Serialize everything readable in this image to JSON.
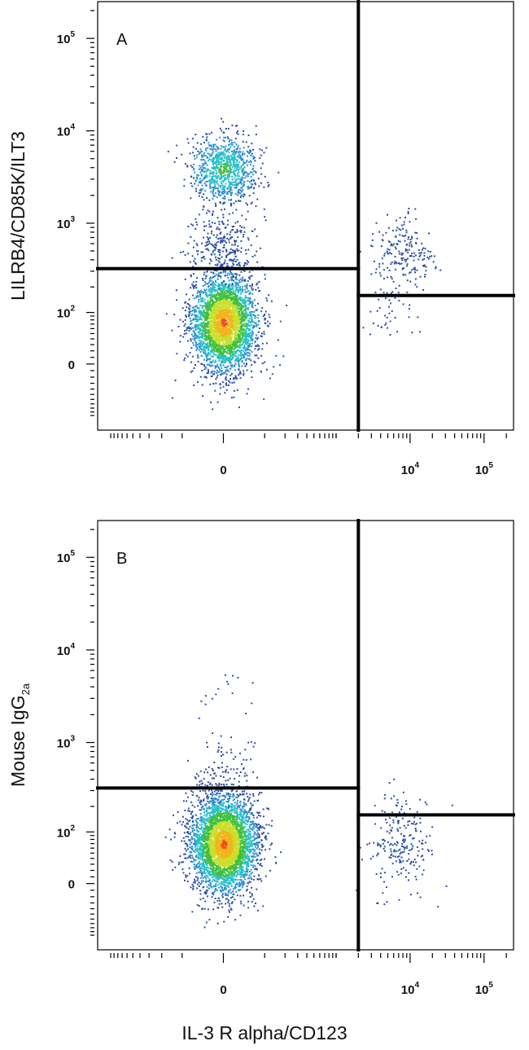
{
  "chart_data": [
    {
      "type": "scatter",
      "panel_label": "A",
      "ylabel": "LILRB4/CD85K/ILT3",
      "xlabel": "",
      "x_ticks": [
        {
          "base": "0",
          "exp": ""
        },
        {
          "base": "10",
          "exp": "4"
        },
        {
          "base": "10",
          "exp": "5"
        }
      ],
      "y_ticks": [
        {
          "base": "0",
          "exp": ""
        },
        {
          "base": "10",
          "exp": "2"
        },
        {
          "base": "10",
          "exp": "3"
        },
        {
          "base": "10",
          "exp": "4"
        },
        {
          "base": "10",
          "exp": "5"
        }
      ],
      "x_scale": "biexponential",
      "y_scale": "biexponential",
      "x_range": [
        -1500,
        250000
      ],
      "y_range": [
        -150,
        250000
      ],
      "colormap": "density (blue-cyan-green-yellow-red)",
      "gates": {
        "vertical_x": 2000,
        "left_horizontal_y": 320,
        "right_horizontal_y": 160
      },
      "populations": [
        {
          "cx": 0,
          "cy": 75,
          "count": 3200,
          "peak": "red"
        },
        {
          "cx": 0,
          "cy": 3900,
          "count": 900,
          "peak": "green"
        },
        {
          "cx": 0,
          "cy": 600,
          "count": 260,
          "peak": "blue"
        },
        {
          "cx": 8000,
          "cy": 500,
          "count": 180,
          "peak": "blue"
        },
        {
          "cx": 5000,
          "cy": 150,
          "count": 60,
          "peak": "blue"
        }
      ]
    },
    {
      "type": "scatter",
      "panel_label": "B",
      "ylabel": "Mouse IgG",
      "ylabel_subscript": "2a",
      "xlabel": "IL-3 R alpha/CD123",
      "x_ticks": [
        {
          "base": "0",
          "exp": ""
        },
        {
          "base": "10",
          "exp": "4"
        },
        {
          "base": "10",
          "exp": "5"
        }
      ],
      "y_ticks": [
        {
          "base": "0",
          "exp": ""
        },
        {
          "base": "10",
          "exp": "2"
        },
        {
          "base": "10",
          "exp": "3"
        },
        {
          "base": "10",
          "exp": "4"
        },
        {
          "base": "10",
          "exp": "5"
        }
      ],
      "x_scale": "biexponential",
      "y_scale": "biexponential",
      "x_range": [
        -1500,
        250000
      ],
      "y_range": [
        -150,
        250000
      ],
      "colormap": "density (blue-cyan-green-yellow-red)",
      "gates": {
        "vertical_x": 2000,
        "left_horizontal_y": 320,
        "right_horizontal_y": 160
      },
      "populations": [
        {
          "cx": 0,
          "cy": 70,
          "count": 3800,
          "peak": "red"
        },
        {
          "cx": 7000,
          "cy": 70,
          "count": 220,
          "peak": "blue"
        },
        {
          "cx": 0,
          "cy": 500,
          "count": 90,
          "peak": "blue"
        },
        {
          "cx": 0,
          "cy": 3000,
          "count": 18,
          "peak": "blue"
        }
      ]
    }
  ]
}
